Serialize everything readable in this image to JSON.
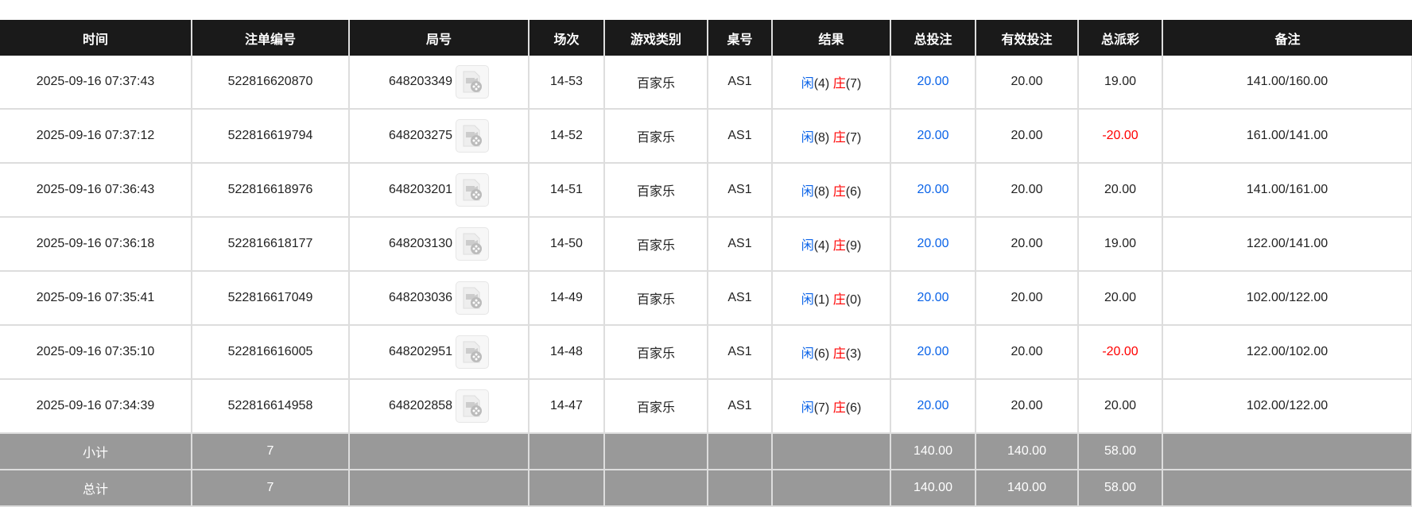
{
  "headers": [
    "时间",
    "注单编号",
    "局号",
    "场次",
    "游戏类别",
    "桌号",
    "结果",
    "总投注",
    "有效投注",
    "总派彩",
    "备注"
  ],
  "colors": {
    "player": "#0a63e8",
    "banker": "#ff0000",
    "negative": "#ff0000",
    "bet": "#0a63e8"
  },
  "rows": [
    {
      "time": "2025-09-16 07:37:43",
      "order": "522816620870",
      "round": "648203349",
      "shoe": "14-53",
      "game": "百家乐",
      "table": "AS1",
      "p_label": "闲",
      "p": "(4)",
      "b_label": "庄",
      "b": "(7)",
      "bet": "20.00",
      "valid": "20.00",
      "payout": "19.00",
      "note": "141.00/160.00"
    },
    {
      "time": "2025-09-16 07:37:12",
      "order": "522816619794",
      "round": "648203275",
      "shoe": "14-52",
      "game": "百家乐",
      "table": "AS1",
      "p_label": "闲",
      "p": "(8)",
      "b_label": "庄",
      "b": "(7)",
      "bet": "20.00",
      "valid": "20.00",
      "payout": "-20.00",
      "note": "161.00/141.00"
    },
    {
      "time": "2025-09-16 07:36:43",
      "order": "522816618976",
      "round": "648203201",
      "shoe": "14-51",
      "game": "百家乐",
      "table": "AS1",
      "p_label": "闲",
      "p": "(8)",
      "b_label": "庄",
      "b": "(6)",
      "bet": "20.00",
      "valid": "20.00",
      "payout": "20.00",
      "note": "141.00/161.00"
    },
    {
      "time": "2025-09-16 07:36:18",
      "order": "522816618177",
      "round": "648203130",
      "shoe": "14-50",
      "game": "百家乐",
      "table": "AS1",
      "p_label": "闲",
      "p": "(4)",
      "b_label": "庄",
      "b": "(9)",
      "bet": "20.00",
      "valid": "20.00",
      "payout": "19.00",
      "note": "122.00/141.00"
    },
    {
      "time": "2025-09-16 07:35:41",
      "order": "522816617049",
      "round": "648203036",
      "shoe": "14-49",
      "game": "百家乐",
      "table": "AS1",
      "p_label": "闲",
      "p": "(1)",
      "b_label": "庄",
      "b": "(0)",
      "bet": "20.00",
      "valid": "20.00",
      "payout": "20.00",
      "note": "102.00/122.00"
    },
    {
      "time": "2025-09-16 07:35:10",
      "order": "522816616005",
      "round": "648202951",
      "shoe": "14-48",
      "game": "百家乐",
      "table": "AS1",
      "p_label": "闲",
      "p": "(6)",
      "b_label": "庄",
      "b": "(3)",
      "bet": "20.00",
      "valid": "20.00",
      "payout": "-20.00",
      "note": "122.00/102.00"
    },
    {
      "time": "2025-09-16 07:34:39",
      "order": "522816614958",
      "round": "648202858",
      "shoe": "14-47",
      "game": "百家乐",
      "table": "AS1",
      "p_label": "闲",
      "p": "(7)",
      "b_label": "庄",
      "b": "(6)",
      "bet": "20.00",
      "valid": "20.00",
      "payout": "20.00",
      "note": "102.00/122.00"
    }
  ],
  "subtotal": {
    "label": "小计",
    "count": "7",
    "bet": "140.00",
    "valid": "140.00",
    "payout": "58.00"
  },
  "total": {
    "label": "总计",
    "count": "7",
    "bet": "140.00",
    "valid": "140.00",
    "payout": "58.00"
  }
}
